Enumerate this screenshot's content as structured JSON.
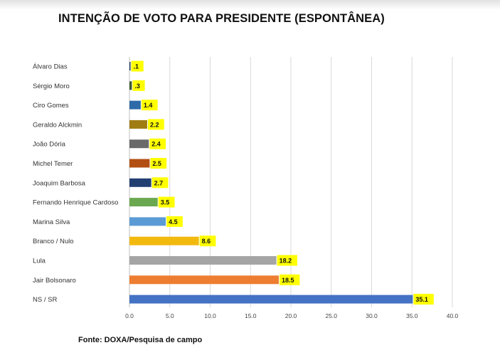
{
  "page": {
    "title": "INTENÇÃO DE VOTO PARA PRESIDENTE (ESPONTÂNEA)",
    "source": "Fonte: DOXA/Pesquisa de campo"
  },
  "chart_data": {
    "type": "bar",
    "orientation": "horizontal",
    "title": "INTENÇÃO DE VOTO PARA PRESIDENTE (ESPONTÂNEA)",
    "categories": [
      "Álvaro Dias",
      "Sérgio Moro",
      "Ciro Gomes",
      "Geraldo Alckmin",
      "João Dória",
      "Michel Temer",
      "Joaquim Barbosa",
      "Fernando Henrique Cardoso",
      "Marina Silva",
      "Branco / Nulo",
      "Lula",
      "Jair Bolsonaro",
      "NS / SR"
    ],
    "values": [
      0.1,
      0.3,
      1.4,
      2.2,
      2.4,
      2.5,
      2.7,
      3.5,
      4.5,
      8.6,
      18.2,
      18.5,
      35.1
    ],
    "value_labels": [
      ".1",
      ".3",
      "1.4",
      "2.2",
      "2.4",
      "2.5",
      "2.7",
      "3.5",
      "4.5",
      "8.6",
      "18.2",
      "18.5",
      "35.1"
    ],
    "colors": [
      "#1f3b63",
      "#3f5a35",
      "#2e6aa8",
      "#a07d12",
      "#6a6a6a",
      "#b24e12",
      "#223f72",
      "#6aa84f",
      "#5b9bd5",
      "#f2b90f",
      "#a5a5a5",
      "#ed7d31",
      "#4472c4"
    ],
    "label_background": "#ffff00",
    "xlim": [
      0,
      40
    ],
    "x_ticks": [
      "0.0",
      "5.0",
      "10.0",
      "15.0",
      "20.0",
      "25.0",
      "30.0",
      "35.0",
      "40.0"
    ],
    "grid": true,
    "legend": "none"
  }
}
